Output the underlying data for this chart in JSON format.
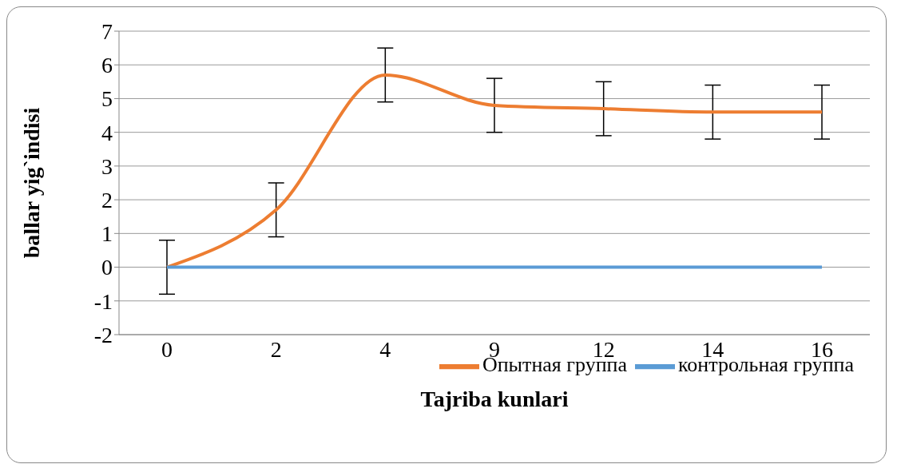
{
  "chart_data": {
    "type": "line",
    "xlabel": "Tajriba kunlari",
    "ylabel": "ballar yig`indisi",
    "categories": [
      "0",
      "2",
      "4",
      "9",
      "12",
      "14",
      "16"
    ],
    "series": [
      {
        "name": "Опытная группа",
        "color": "#ed7d31",
        "values": [
          0,
          1.7,
          5.7,
          4.8,
          4.7,
          4.6,
          4.6
        ],
        "errors": [
          0.8,
          0.8,
          0.8,
          0.8,
          0.8,
          0.8,
          0.8
        ]
      },
      {
        "name": "контрольная группа",
        "color": "#5b9bd5",
        "values": [
          0,
          0,
          0,
          0,
          0,
          0,
          0
        ]
      }
    ],
    "ylim": [
      -2,
      7
    ],
    "yticks": [
      -2,
      -1,
      0,
      1,
      2,
      3,
      4,
      5,
      6,
      7
    ],
    "grid": "y",
    "legend": "bottom right",
    "marker": "none",
    "line_style": "solid"
  }
}
